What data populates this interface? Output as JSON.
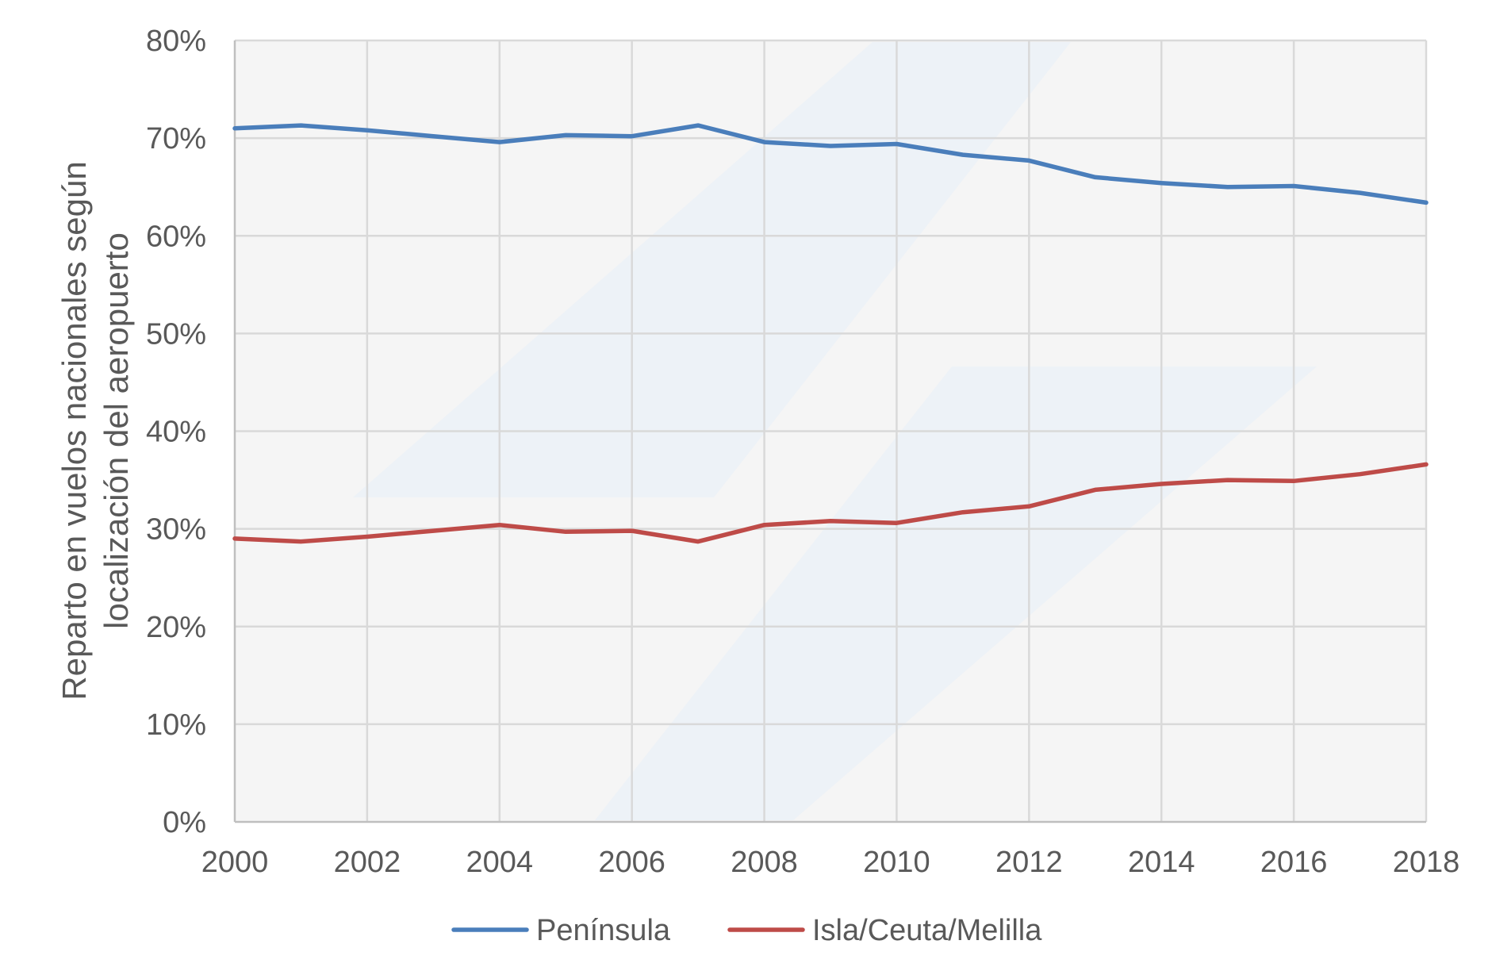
{
  "chart_data": {
    "type": "line",
    "title": "",
    "xlabel": "",
    "ylabel": "Reparto en vuelos nacionales según localización del aeropuerto",
    "ylabel_lines": [
      "Reparto en vuelos nacionales según",
      "localización del aeropuerto"
    ],
    "x": [
      2000,
      2001,
      2002,
      2003,
      2004,
      2005,
      2006,
      2007,
      2008,
      2009,
      2010,
      2011,
      2012,
      2013,
      2014,
      2015,
      2016,
      2017,
      2018
    ],
    "xlim": [
      2000,
      2018
    ],
    "x_ticks": [
      "2000",
      "2002",
      "2004",
      "2006",
      "2008",
      "2010",
      "2012",
      "2014",
      "2016",
      "2018"
    ],
    "ylim": [
      0,
      80
    ],
    "y_ticks": [
      "0%",
      "10%",
      "20%",
      "30%",
      "40%",
      "50%",
      "60%",
      "70%",
      "80%"
    ],
    "grid": true,
    "legend_position": "bottom",
    "series": [
      {
        "name": "Península",
        "color": "#4a7ebb",
        "values": [
          71.0,
          71.3,
          70.8,
          70.2,
          69.6,
          70.3,
          70.2,
          71.3,
          69.6,
          69.2,
          69.4,
          68.3,
          67.7,
          66.0,
          65.4,
          65.0,
          65.1,
          64.4,
          63.4
        ]
      },
      {
        "name": "Isla/Ceuta/Melilla",
        "color": "#be4b48",
        "values": [
          29.0,
          28.7,
          29.2,
          29.8,
          30.4,
          29.7,
          29.8,
          28.7,
          30.4,
          30.8,
          30.6,
          31.7,
          32.3,
          34.0,
          34.6,
          35.0,
          34.9,
          35.6,
          36.6
        ]
      }
    ]
  },
  "colors": {
    "plot_background": "#f5f5f5",
    "watermark_fill": "#e6eef8"
  }
}
